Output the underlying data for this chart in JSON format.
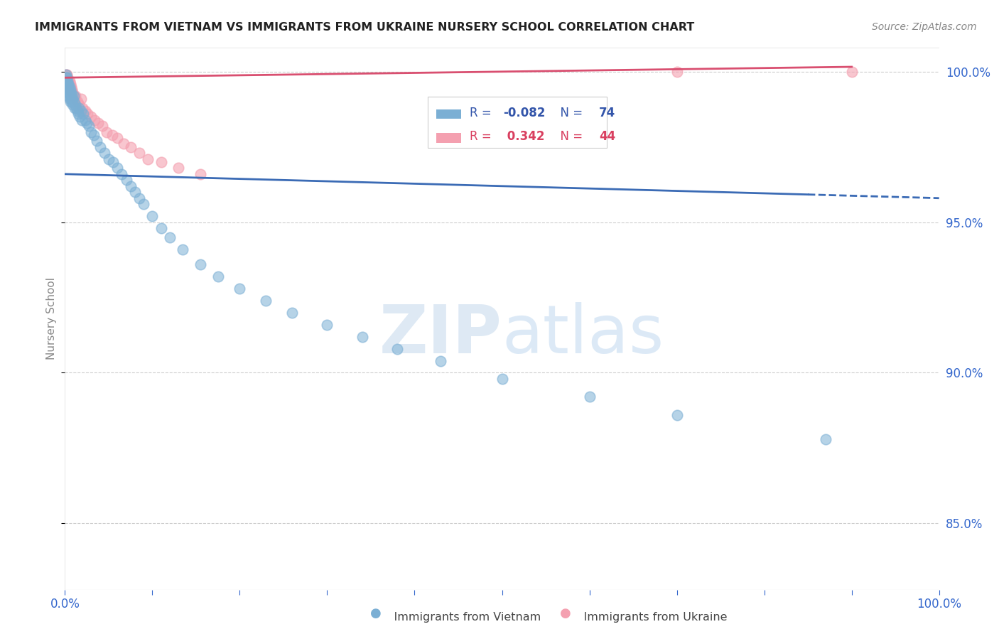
{
  "title": "IMMIGRANTS FROM VIETNAM VS IMMIGRANTS FROM UKRAINE NURSERY SCHOOL CORRELATION CHART",
  "source": "Source: ZipAtlas.com",
  "ylabel": "Nursery School",
  "xlim": [
    0,
    1.0
  ],
  "ylim": [
    0.828,
    1.008
  ],
  "r_vietnam": -0.082,
  "n_vietnam": 74,
  "r_ukraine": 0.342,
  "n_ukraine": 44,
  "vietnam_color": "#7BAFD4",
  "ukraine_color": "#F4A0B0",
  "trendline_vietnam_color": "#3B6BB5",
  "trendline_ukraine_color": "#D94F70",
  "yticks": [
    0.85,
    0.9,
    0.95,
    1.0
  ],
  "ytick_labels": [
    "85.0%",
    "90.0%",
    "95.0%",
    "100.0%"
  ],
  "xtick_labels": [
    "0.0%",
    "",
    "",
    "",
    "",
    "",
    "",
    "",
    "",
    "",
    "100.0%"
  ],
  "vietnam_x": [
    0.001,
    0.001,
    0.001,
    0.002,
    0.002,
    0.002,
    0.002,
    0.003,
    0.003,
    0.003,
    0.003,
    0.003,
    0.004,
    0.004,
    0.004,
    0.004,
    0.005,
    0.005,
    0.005,
    0.006,
    0.006,
    0.006,
    0.007,
    0.007,
    0.008,
    0.008,
    0.009,
    0.009,
    0.01,
    0.01,
    0.011,
    0.012,
    0.013,
    0.014,
    0.015,
    0.016,
    0.017,
    0.018,
    0.019,
    0.021,
    0.023,
    0.025,
    0.027,
    0.03,
    0.033,
    0.036,
    0.04,
    0.045,
    0.05,
    0.055,
    0.06,
    0.065,
    0.07,
    0.075,
    0.08,
    0.085,
    0.09,
    0.1,
    0.11,
    0.12,
    0.135,
    0.155,
    0.175,
    0.2,
    0.23,
    0.26,
    0.3,
    0.34,
    0.38,
    0.43,
    0.5,
    0.6,
    0.7,
    0.87
  ],
  "vietnam_y": [
    0.999,
    0.998,
    0.997,
    0.998,
    0.997,
    0.996,
    0.995,
    0.997,
    0.996,
    0.995,
    0.994,
    0.993,
    0.996,
    0.995,
    0.993,
    0.992,
    0.995,
    0.993,
    0.991,
    0.994,
    0.992,
    0.99,
    0.993,
    0.991,
    0.992,
    0.99,
    0.991,
    0.989,
    0.992,
    0.99,
    0.988,
    0.989,
    0.988,
    0.987,
    0.986,
    0.988,
    0.985,
    0.987,
    0.984,
    0.986,
    0.984,
    0.983,
    0.982,
    0.98,
    0.979,
    0.977,
    0.975,
    0.973,
    0.971,
    0.97,
    0.968,
    0.966,
    0.964,
    0.962,
    0.96,
    0.958,
    0.956,
    0.952,
    0.948,
    0.945,
    0.941,
    0.936,
    0.932,
    0.928,
    0.924,
    0.92,
    0.916,
    0.912,
    0.908,
    0.904,
    0.898,
    0.892,
    0.886,
    0.878
  ],
  "ukraine_x": [
    0.001,
    0.001,
    0.002,
    0.002,
    0.002,
    0.003,
    0.003,
    0.003,
    0.004,
    0.004,
    0.004,
    0.005,
    0.005,
    0.006,
    0.006,
    0.007,
    0.007,
    0.008,
    0.009,
    0.01,
    0.011,
    0.012,
    0.014,
    0.016,
    0.018,
    0.02,
    0.023,
    0.026,
    0.03,
    0.034,
    0.038,
    0.043,
    0.048,
    0.054,
    0.06,
    0.067,
    0.075,
    0.085,
    0.095,
    0.11,
    0.13,
    0.155,
    0.7,
    0.9
  ],
  "ukraine_y": [
    0.999,
    0.998,
    0.999,
    0.998,
    0.997,
    0.998,
    0.997,
    0.996,
    0.997,
    0.996,
    0.995,
    0.997,
    0.995,
    0.996,
    0.994,
    0.995,
    0.993,
    0.994,
    0.993,
    0.992,
    0.991,
    0.992,
    0.99,
    0.989,
    0.991,
    0.988,
    0.987,
    0.986,
    0.985,
    0.984,
    0.983,
    0.982,
    0.98,
    0.979,
    0.978,
    0.976,
    0.975,
    0.973,
    0.971,
    0.97,
    0.968,
    0.966,
    1.0,
    1.0
  ],
  "trendline_vietnam_x0": 0.0,
  "trendline_vietnam_x1": 0.85,
  "trendline_vietnam_xdash_start": 0.85,
  "trendline_vietnam_xdash_end": 1.0,
  "trendline_ukraine_x0": 0.0,
  "trendline_ukraine_x1": 0.9
}
